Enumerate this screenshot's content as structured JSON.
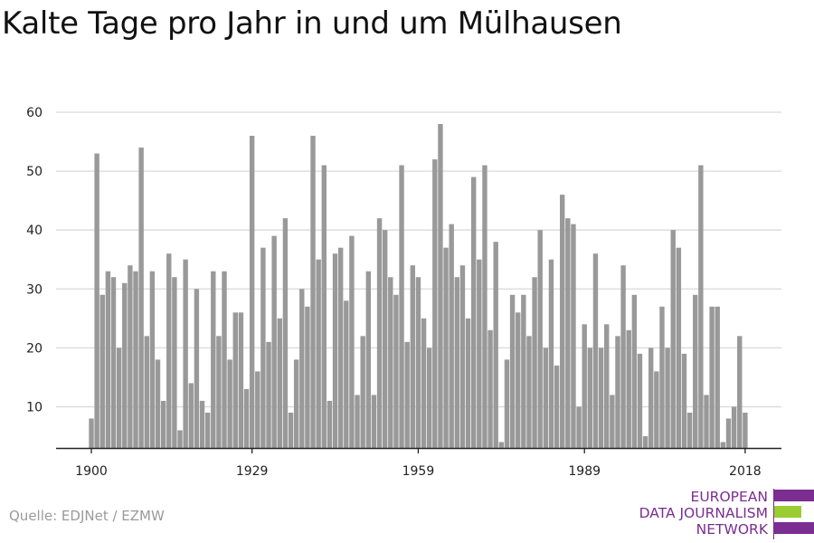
{
  "title": "Kalte Tage pro Jahr in und um Mülhausen",
  "source": "Quelle: EDJNet / EZMW",
  "logo": {
    "line1": "EUROPEAN",
    "line2": "DATA JOURNALISM",
    "line3": "NETWORK",
    "colors": {
      "purple": "#7b2d91",
      "green": "#9acd32"
    }
  },
  "colors": {
    "bar": "#999999",
    "grid": "#d9d9d9",
    "axis": "#222222"
  },
  "chart_data": {
    "type": "bar",
    "title": "Kalte Tage pro Jahr in und um Mülhausen",
    "xlabel": "",
    "ylabel": "",
    "ylim": [
      3,
      60
    ],
    "yticks": [
      10,
      20,
      30,
      40,
      50,
      60
    ],
    "xticks": [
      1900,
      1929,
      1959,
      1989,
      2018
    ],
    "grid": true,
    "x": [
      1900,
      1901,
      1902,
      1903,
      1904,
      1905,
      1906,
      1907,
      1908,
      1909,
      1910,
      1911,
      1912,
      1913,
      1914,
      1915,
      1916,
      1917,
      1918,
      1919,
      1920,
      1921,
      1922,
      1923,
      1924,
      1925,
      1926,
      1927,
      1928,
      1929,
      1930,
      1931,
      1932,
      1933,
      1934,
      1935,
      1936,
      1937,
      1938,
      1939,
      1940,
      1941,
      1942,
      1943,
      1944,
      1945,
      1946,
      1947,
      1948,
      1949,
      1950,
      1951,
      1952,
      1953,
      1954,
      1955,
      1956,
      1957,
      1958,
      1959,
      1960,
      1961,
      1962,
      1963,
      1964,
      1965,
      1966,
      1967,
      1968,
      1969,
      1970,
      1971,
      1972,
      1973,
      1974,
      1975,
      1976,
      1977,
      1978,
      1979,
      1980,
      1981,
      1982,
      1983,
      1984,
      1985,
      1986,
      1987,
      1988,
      1989,
      1990,
      1991,
      1992,
      1993,
      1994,
      1995,
      1996,
      1997,
      1998,
      1999,
      2000,
      2001,
      2002,
      2003,
      2004,
      2005,
      2006,
      2007,
      2008,
      2009,
      2010,
      2011,
      2012,
      2013,
      2014,
      2015,
      2016,
      2017,
      2018
    ],
    "values": [
      8,
      53,
      29,
      33,
      32,
      20,
      31,
      34,
      33,
      54,
      22,
      33,
      18,
      11,
      36,
      32,
      6,
      35,
      14,
      30,
      11,
      9,
      33,
      22,
      33,
      18,
      26,
      26,
      13,
      56,
      16,
      37,
      21,
      39,
      25,
      42,
      9,
      18,
      30,
      27,
      56,
      35,
      51,
      11,
      36,
      37,
      28,
      39,
      12,
      22,
      33,
      12,
      42,
      40,
      32,
      29,
      51,
      21,
      34,
      32,
      25,
      20,
      52,
      58,
      37,
      41,
      32,
      34,
      25,
      49,
      35,
      51,
      23,
      38,
      4,
      18,
      29,
      26,
      29,
      22,
      32,
      40,
      20,
      35,
      17,
      46,
      42,
      41,
      10,
      24,
      20,
      36,
      20,
      24,
      12,
      22,
      34,
      23,
      29,
      19,
      5,
      20,
      16,
      27,
      20,
      40,
      37,
      19,
      9,
      29,
      51,
      12,
      27,
      27,
      4,
      8,
      10,
      22,
      9
    ]
  }
}
